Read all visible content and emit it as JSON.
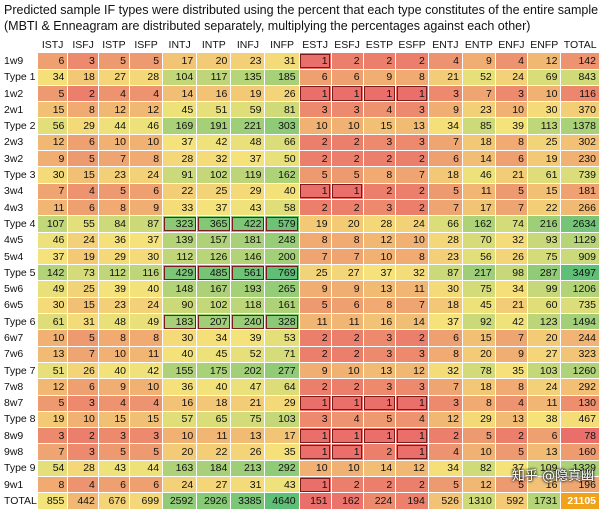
{
  "title_line1": "Predicted sample IF types were distributed using the percent that each type constitutes of the entire sample",
  "title_line2": "(MBTI & Enneagram are distributed separately, multiplying the percentages against each other)",
  "watermark": "知乎 @隐真幽",
  "chart_data": {
    "type": "heatmap",
    "corner": "",
    "columns": [
      "ISTJ",
      "ISFJ",
      "ISTP",
      "ISFP",
      "INTJ",
      "INTP",
      "INFJ",
      "INFP",
      "ESTJ",
      "ESFJ",
      "ESTP",
      "ESFP",
      "ENTJ",
      "ENTP",
      "ENFJ",
      "ENFP",
      "TOTAL"
    ],
    "rows": [
      {
        "label": "1w9",
        "values": [
          6,
          3,
          5,
          5,
          17,
          20,
          23,
          31,
          1,
          2,
          2,
          2,
          4,
          9,
          4,
          12,
          142
        ]
      },
      {
        "label": "Type 1",
        "values": [
          34,
          18,
          27,
          28,
          104,
          117,
          135,
          185,
          6,
          6,
          9,
          8,
          21,
          52,
          24,
          69,
          843
        ]
      },
      {
        "label": "1w2",
        "values": [
          5,
          2,
          4,
          4,
          14,
          16,
          19,
          26,
          1,
          1,
          1,
          1,
          3,
          7,
          3,
          10,
          116
        ]
      },
      {
        "label": "2w1",
        "values": [
          15,
          8,
          12,
          12,
          45,
          51,
          59,
          81,
          3,
          3,
          4,
          3,
          9,
          23,
          10,
          30,
          370
        ]
      },
      {
        "label": "Type 2",
        "values": [
          56,
          29,
          44,
          46,
          169,
          191,
          221,
          303,
          10,
          10,
          15,
          13,
          34,
          85,
          39,
          113,
          1378
        ]
      },
      {
        "label": "2w3",
        "values": [
          12,
          6,
          10,
          10,
          37,
          42,
          48,
          66,
          2,
          2,
          3,
          3,
          7,
          18,
          8,
          25,
          302
        ]
      },
      {
        "label": "3w2",
        "values": [
          9,
          5,
          7,
          8,
          28,
          32,
          37,
          50,
          2,
          2,
          2,
          2,
          6,
          14,
          6,
          19,
          230
        ]
      },
      {
        "label": "Type 3",
        "values": [
          30,
          15,
          23,
          24,
          91,
          102,
          119,
          162,
          5,
          5,
          8,
          7,
          18,
          46,
          21,
          61,
          739
        ]
      },
      {
        "label": "3w4",
        "values": [
          7,
          4,
          5,
          6,
          22,
          25,
          29,
          40,
          1,
          1,
          2,
          2,
          5,
          11,
          5,
          15,
          181
        ]
      },
      {
        "label": "4w3",
        "values": [
          11,
          6,
          8,
          9,
          33,
          37,
          43,
          58,
          2,
          2,
          3,
          2,
          7,
          17,
          7,
          22,
          266
        ]
      },
      {
        "label": "Type 4",
        "values": [
          107,
          55,
          84,
          87,
          323,
          365,
          422,
          579,
          19,
          20,
          28,
          24,
          66,
          162,
          74,
          216,
          2634
        ]
      },
      {
        "label": "4w5",
        "values": [
          46,
          24,
          36,
          37,
          139,
          157,
          181,
          248,
          8,
          8,
          12,
          10,
          28,
          70,
          32,
          93,
          1129
        ]
      },
      {
        "label": "5w4",
        "values": [
          37,
          19,
          29,
          30,
          112,
          126,
          146,
          200,
          7,
          7,
          10,
          8,
          23,
          56,
          26,
          75,
          909
        ]
      },
      {
        "label": "Type 5",
        "values": [
          142,
          73,
          112,
          116,
          429,
          485,
          561,
          769,
          25,
          27,
          37,
          32,
          87,
          217,
          98,
          287,
          3497
        ]
      },
      {
        "label": "5w6",
        "values": [
          49,
          25,
          39,
          40,
          148,
          167,
          193,
          265,
          9,
          9,
          13,
          11,
          30,
          75,
          34,
          99,
          1206
        ]
      },
      {
        "label": "6w5",
        "values": [
          30,
          15,
          23,
          24,
          90,
          102,
          118,
          161,
          5,
          6,
          8,
          7,
          18,
          45,
          21,
          60,
          735
        ]
      },
      {
        "label": "Type 6",
        "values": [
          61,
          31,
          48,
          49,
          183,
          207,
          240,
          328,
          11,
          11,
          16,
          14,
          37,
          92,
          42,
          123,
          1494
        ]
      },
      {
        "label": "6w7",
        "values": [
          10,
          5,
          8,
          8,
          30,
          34,
          39,
          53,
          2,
          2,
          3,
          2,
          6,
          15,
          7,
          20,
          244
        ]
      },
      {
        "label": "7w6",
        "values": [
          13,
          7,
          10,
          11,
          40,
          45,
          52,
          71,
          2,
          2,
          3,
          3,
          8,
          20,
          9,
          27,
          323
        ]
      },
      {
        "label": "Type 7",
        "values": [
          51,
          26,
          40,
          42,
          155,
          175,
          202,
          277,
          9,
          10,
          13,
          12,
          32,
          78,
          35,
          103,
          1260
        ]
      },
      {
        "label": "7w8",
        "values": [
          12,
          6,
          9,
          10,
          36,
          40,
          47,
          64,
          2,
          2,
          3,
          3,
          7,
          18,
          8,
          24,
          292
        ]
      },
      {
        "label": "8w7",
        "values": [
          5,
          3,
          4,
          4,
          16,
          18,
          21,
          29,
          1,
          1,
          1,
          1,
          3,
          8,
          4,
          11,
          130
        ]
      },
      {
        "label": "Type 8",
        "values": [
          19,
          10,
          15,
          15,
          57,
          65,
          75,
          103,
          3,
          4,
          5,
          4,
          12,
          29,
          13,
          38,
          467
        ]
      },
      {
        "label": "8w9",
        "values": [
          3,
          2,
          3,
          3,
          10,
          11,
          13,
          17,
          1,
          1,
          1,
          1,
          2,
          5,
          2,
          6,
          78
        ]
      },
      {
        "label": "9w8",
        "values": [
          7,
          3,
          5,
          5,
          20,
          22,
          26,
          35,
          1,
          1,
          2,
          1,
          4,
          10,
          5,
          13,
          160
        ]
      },
      {
        "label": "Type 9",
        "values": [
          54,
          28,
          43,
          44,
          163,
          184,
          213,
          292,
          10,
          10,
          14,
          12,
          34,
          82,
          37,
          109,
          1329
        ]
      },
      {
        "label": "9w1",
        "values": [
          8,
          4,
          6,
          6,
          24,
          27,
          31,
          43,
          1,
          2,
          2,
          2,
          5,
          12,
          5,
          16,
          196
        ]
      },
      {
        "label": "TOTAL",
        "values": [
          855,
          442,
          676,
          699,
          2592,
          2926,
          3385,
          4640,
          151,
          162,
          224,
          194,
          526,
          1310,
          592,
          1731,
          21105
        ]
      }
    ],
    "color_scale": {
      "low": "#ea6f6a",
      "mid": "#f5e37a",
      "high": "#5fbf76"
    }
  }
}
